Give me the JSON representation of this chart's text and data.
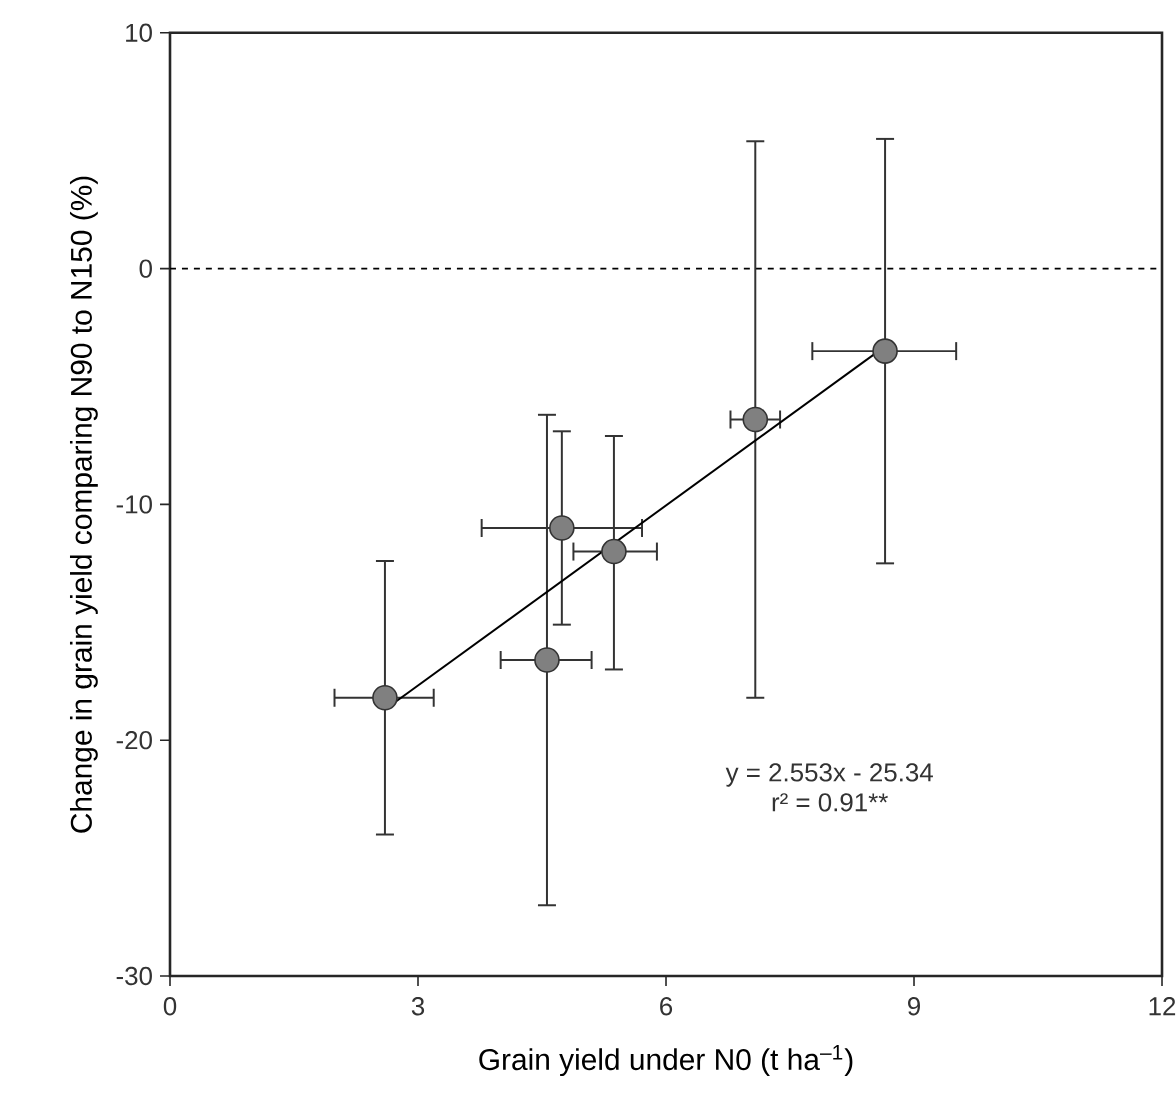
{
  "chart_data": {
    "type": "scatter",
    "xlabel": "Grain yield under N0 (t ha$^{–1}$)",
    "ylabel": "Change in grain yield comparing N90 to N150 (%)",
    "xlim": [
      0,
      12
    ],
    "ylim": [
      -30,
      10
    ],
    "xticks": [
      0,
      3,
      6,
      9,
      12
    ],
    "yticks": [
      -30,
      -20,
      -10,
      0,
      10
    ],
    "series": [
      {
        "color": "#808080",
        "marker": "circle",
        "x": [
          2.6,
          4.56,
          4.74,
          5.37,
          7.08,
          8.65
        ],
        "values": [
          -18.2,
          -16.6,
          -11.0,
          -12.0,
          -6.4,
          -3.5
        ],
        "errors": [
          [
            -24.0,
            -12.4
          ],
          [
            -27.0,
            -6.2
          ],
          [
            -15.1,
            -6.9
          ],
          [
            -17.0,
            -7.1
          ],
          [
            -18.2,
            5.4
          ],
          [
            -12.5,
            5.5
          ]
        ],
        "xerrors": [
          [
            1.99,
            3.19
          ],
          [
            4.0,
            5.1
          ],
          [
            3.77,
            5.71
          ],
          [
            4.88,
            5.89
          ],
          [
            6.78,
            7.38
          ],
          [
            7.77,
            9.51
          ]
        ]
      },
      {
        "type": "line",
        "color": "#000000",
        "x": [
          2.6,
          8.65
        ],
        "values": [
          -18.7,
          -3.3
        ],
        "marker": "none"
      }
    ],
    "ref_lines": [
      {
        "axis": "y",
        "value": 0,
        "line_style": "dashed",
        "color": "#000000"
      }
    ],
    "annotations": [
      "y = 2.553x - 25.34",
      "r² = 0.91**"
    ]
  }
}
